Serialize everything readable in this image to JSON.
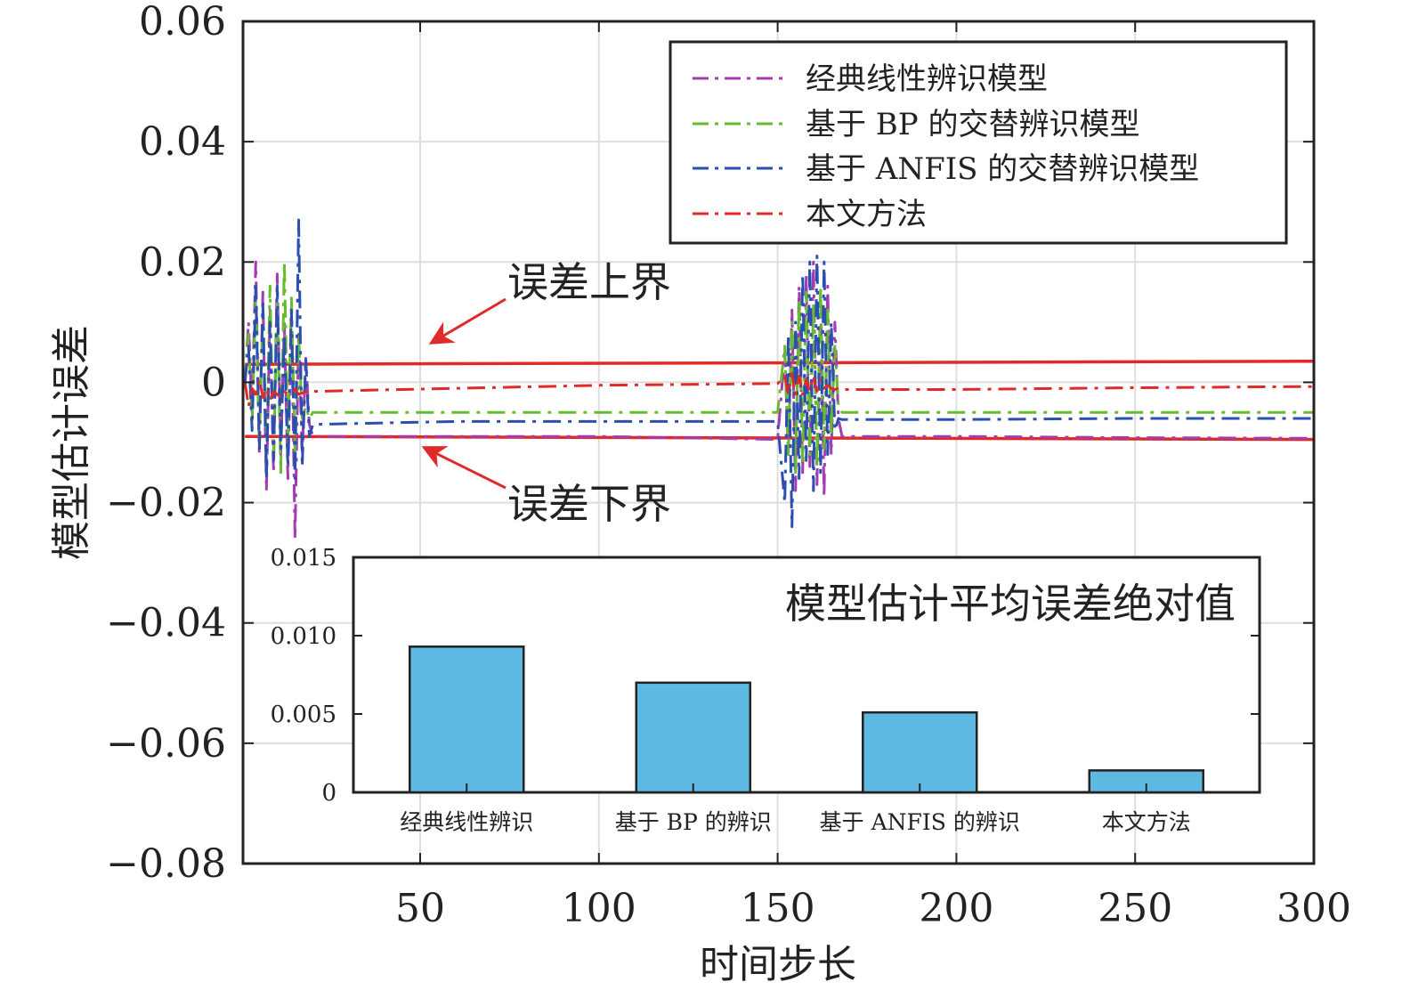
{
  "chart_data": [
    {
      "type": "line",
      "xlabel": "时间步长",
      "ylabel": "模型估计误差",
      "xlim": [
        1,
        300
      ],
      "ylim": [
        -0.08,
        0.06
      ],
      "xticks": [
        50,
        100,
        150,
        200,
        250,
        300
      ],
      "xtick_labels": [
        "50",
        "100",
        "150",
        "200",
        "250",
        "300"
      ],
      "yticks": [
        -0.08,
        -0.06,
        -0.04,
        -0.02,
        0,
        0.02,
        0.04,
        0.06
      ],
      "ytick_labels": [
        "−0.08",
        "−0.06",
        "−0.04",
        "−0.02",
        "0",
        "0.02",
        "0.04",
        "0.06"
      ],
      "grid": true,
      "legend_position": "top-right",
      "bounds": {
        "upper": {
          "label": "误差上界",
          "color": "#e02a2a",
          "values": [
            [
              1,
              0.003
            ],
            [
              300,
              0.0035
            ]
          ]
        },
        "lower": {
          "label": "误差下界",
          "color": "#e02a2a",
          "values": [
            [
              1,
              -0.009
            ],
            [
              300,
              -0.0095
            ]
          ]
        }
      },
      "series": [
        {
          "name": "经典线性辨识模型",
          "color": "#a43cb0",
          "values": [
            [
              1,
              0
            ],
            [
              2,
              0.01
            ],
            [
              3,
              -0.005
            ],
            [
              4,
              0.02
            ],
            [
              5,
              -0.012
            ],
            [
              6,
              0.015
            ],
            [
              7,
              -0.018
            ],
            [
              8,
              0.012
            ],
            [
              9,
              -0.015
            ],
            [
              10,
              0.018
            ],
            [
              11,
              -0.012
            ],
            [
              12,
              0.01
            ],
            [
              13,
              -0.016
            ],
            [
              14,
              0.012
            ],
            [
              15,
              -0.026
            ],
            [
              16,
              0.008
            ],
            [
              17,
              -0.012
            ],
            [
              18,
              0.004
            ],
            [
              19,
              -0.007
            ],
            [
              20,
              -0.009
            ],
            [
              60,
              -0.009
            ],
            [
              100,
              -0.009
            ],
            [
              150,
              -0.0095
            ],
            [
              152,
              0.005
            ],
            [
              153,
              -0.012
            ],
            [
              154,
              0.012
            ],
            [
              155,
              -0.018
            ],
            [
              156,
              0.016
            ],
            [
              157,
              -0.015
            ],
            [
              158,
              0.018
            ],
            [
              159,
              -0.014
            ],
            [
              160,
              0.02
            ],
            [
              161,
              -0.017
            ],
            [
              162,
              0.014
            ],
            [
              163,
              -0.019
            ],
            [
              164,
              0.016
            ],
            [
              165,
              -0.012
            ],
            [
              166,
              0.01
            ],
            [
              167,
              -0.006
            ],
            [
              168,
              -0.009
            ],
            [
              200,
              -0.009
            ],
            [
              250,
              -0.0092
            ],
            [
              300,
              -0.0093
            ]
          ]
        },
        {
          "name": "基于 BP 的交替辨识模型",
          "color": "#66bb2e",
          "values": [
            [
              1,
              0
            ],
            [
              2,
              0.008
            ],
            [
              3,
              -0.007
            ],
            [
              4,
              0.014
            ],
            [
              5,
              -0.01
            ],
            [
              6,
              0.012
            ],
            [
              7,
              -0.013
            ],
            [
              8,
              0.016
            ],
            [
              9,
              -0.012
            ],
            [
              10,
              0.013
            ],
            [
              11,
              -0.015
            ],
            [
              12,
              0.02
            ],
            [
              13,
              -0.01
            ],
            [
              14,
              0.014
            ],
            [
              15,
              -0.012
            ],
            [
              16,
              0.008
            ],
            [
              17,
              -0.006
            ],
            [
              18,
              -0.004
            ],
            [
              19,
              -0.006
            ],
            [
              20,
              -0.005
            ],
            [
              60,
              -0.005
            ],
            [
              100,
              -0.005
            ],
            [
              150,
              -0.005
            ],
            [
              152,
              0.006
            ],
            [
              153,
              -0.012
            ],
            [
              154,
              0.01
            ],
            [
              155,
              -0.015
            ],
            [
              156,
              0.014
            ],
            [
              157,
              -0.013
            ],
            [
              158,
              0.015
            ],
            [
              159,
              -0.012
            ],
            [
              160,
              0.013
            ],
            [
              161,
              -0.014
            ],
            [
              162,
              0.016
            ],
            [
              163,
              -0.011
            ],
            [
              164,
              0.012
            ],
            [
              165,
              -0.009
            ],
            [
              166,
              0.006
            ],
            [
              167,
              -0.004
            ],
            [
              168,
              -0.005
            ],
            [
              200,
              -0.005
            ],
            [
              250,
              -0.005
            ],
            [
              300,
              -0.005
            ]
          ]
        },
        {
          "name": "基于 ANFIS 的交替辨识模型",
          "color": "#2b4fb0",
          "values": [
            [
              1,
              0
            ],
            [
              2,
              0.006
            ],
            [
              3,
              -0.008
            ],
            [
              4,
              0.016
            ],
            [
              5,
              -0.011
            ],
            [
              6,
              0.013
            ],
            [
              7,
              -0.016
            ],
            [
              8,
              0.01
            ],
            [
              9,
              -0.013
            ],
            [
              10,
              0.016
            ],
            [
              11,
              -0.011
            ],
            [
              12,
              0.008
            ],
            [
              13,
              -0.014
            ],
            [
              14,
              0.012
            ],
            [
              15,
              -0.016
            ],
            [
              16,
              0.027
            ],
            [
              17,
              -0.014
            ],
            [
              18,
              0.004
            ],
            [
              19,
              -0.009
            ],
            [
              20,
              -0.007
            ],
            [
              60,
              -0.0065
            ],
            [
              100,
              -0.0065
            ],
            [
              150,
              -0.0065
            ],
            [
              152,
              -0.02
            ],
            [
              153,
              0.008
            ],
            [
              154,
              -0.024
            ],
            [
              155,
              0.01
            ],
            [
              156,
              -0.016
            ],
            [
              157,
              0.018
            ],
            [
              158,
              -0.013
            ],
            [
              159,
              0.02
            ],
            [
              160,
              -0.018
            ],
            [
              161,
              0.021
            ],
            [
              162,
              -0.015
            ],
            [
              163,
              0.02
            ],
            [
              164,
              -0.012
            ],
            [
              165,
              0.01
            ],
            [
              166,
              -0.008
            ],
            [
              167,
              -0.006
            ],
            [
              168,
              -0.0062
            ],
            [
              200,
              -0.0062
            ],
            [
              250,
              -0.006
            ],
            [
              300,
              -0.006
            ]
          ]
        },
        {
          "name": "本文方法",
          "color": "#e02a2a",
          "values": [
            [
              1,
              0
            ],
            [
              2,
              -0.004
            ],
            [
              3,
              -0.001
            ],
            [
              4,
              -0.002
            ],
            [
              5,
              0.0005
            ],
            [
              6,
              -0.0025
            ],
            [
              7,
              -0.001
            ],
            [
              8,
              -0.003
            ],
            [
              9,
              -0.0015
            ],
            [
              10,
              -0.002
            ],
            [
              11,
              -0.0025
            ],
            [
              12,
              -0.0015
            ],
            [
              13,
              -0.002
            ],
            [
              14,
              -0.0018
            ],
            [
              15,
              -0.0012
            ],
            [
              16,
              -0.002
            ],
            [
              17,
              -0.0018
            ],
            [
              18,
              -0.0016
            ],
            [
              20,
              -0.0015
            ],
            [
              60,
              -0.001
            ],
            [
              100,
              -0.0005
            ],
            [
              150,
              -0.0002
            ],
            [
              152,
              0.001
            ],
            [
              153,
              -0.002
            ],
            [
              154,
              0.0015
            ],
            [
              155,
              -0.002
            ],
            [
              156,
              0.001
            ],
            [
              157,
              -0.002
            ],
            [
              158,
              0.0005
            ],
            [
              159,
              -0.0015
            ],
            [
              160,
              0.001
            ],
            [
              161,
              -0.0015
            ],
            [
              162,
              0.0005
            ],
            [
              163,
              -0.001
            ],
            [
              164,
              -0.0005
            ],
            [
              165,
              -0.001
            ],
            [
              166,
              -0.0012
            ],
            [
              167,
              -0.001
            ],
            [
              168,
              -0.0012
            ],
            [
              200,
              -0.0012
            ],
            [
              250,
              -0.0009
            ],
            [
              300,
              -0.0007
            ]
          ]
        }
      ],
      "annotations": [
        {
          "text": "误差上界",
          "points_to": [
            53,
            0.0065
          ]
        },
        {
          "text": "误差下界",
          "points_to": [
            51,
            -0.0108
          ]
        }
      ]
    },
    {
      "type": "bar",
      "title": "模型估计平均误差绝对值",
      "categories": [
        "经典线性辨识",
        "基于 BP 的辨识",
        "基于 ANFIS 的辨识",
        "本文方法"
      ],
      "values": [
        0.0093,
        0.007,
        0.0051,
        0.0014
      ],
      "ylim": [
        0,
        0.015
      ],
      "yticks": [
        0,
        0.005,
        0.01,
        0.015
      ],
      "ytick_labels": [
        "0",
        "0.005",
        "0.010",
        "0.015"
      ],
      "bar_color": "#5db8e2"
    }
  ]
}
